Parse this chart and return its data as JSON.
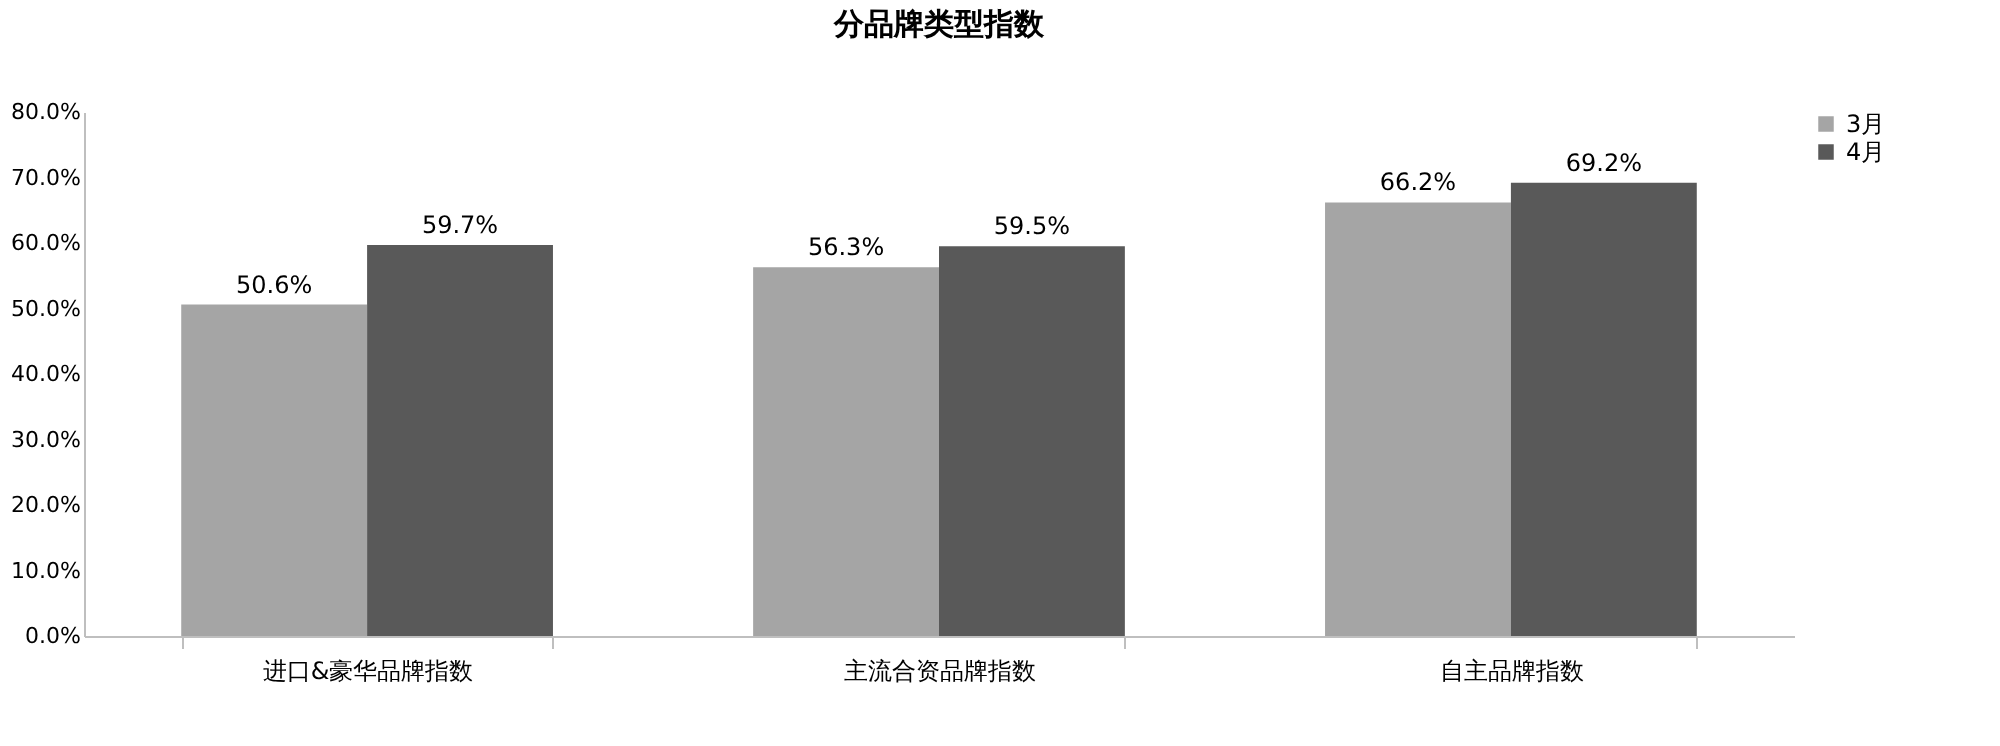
{
  "chart_data": {
    "type": "bar",
    "title": "分品牌类型指数",
    "categories": [
      "进口&豪华品牌指数",
      "主流合资品牌指数",
      "自主品牌指数"
    ],
    "series": [
      {
        "name": "3月",
        "color": "#a5a5a5",
        "values": [
          50.6,
          56.3,
          66.2
        ],
        "value_labels": [
          "50.6%",
          "56.3%",
          "66.2%"
        ]
      },
      {
        "name": "4月",
        "color": "#595959",
        "values": [
          59.7,
          59.5,
          69.2
        ],
        "value_labels": [
          "59.7%",
          "59.5%",
          "69.2%"
        ]
      }
    ],
    "ylim": [
      0,
      80
    ],
    "yticks": [
      {
        "value": 0,
        "label": "0.0%"
      },
      {
        "value": 10,
        "label": "10.0%"
      },
      {
        "value": 20,
        "label": "20.0%"
      },
      {
        "value": 30,
        "label": "30.0%"
      },
      {
        "value": 40,
        "label": "40.0%"
      },
      {
        "value": 50,
        "label": "50.0%"
      },
      {
        "value": 60,
        "label": "60.0%"
      },
      {
        "value": 70,
        "label": "70.0%"
      },
      {
        "value": 80,
        "label": "80.0%"
      }
    ],
    "grid": false,
    "legend": "right"
  }
}
